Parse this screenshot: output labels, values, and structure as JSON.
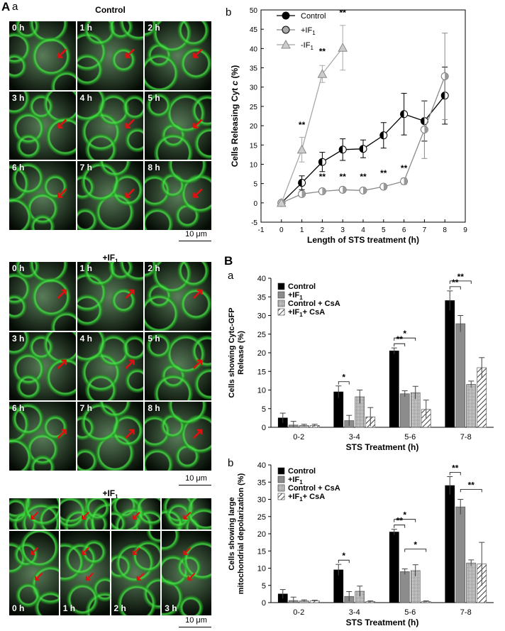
{
  "panel_labels": {
    "A": "A",
    "A_sub": "a",
    "B_chart": "b",
    "B": "B",
    "Ba": "a",
    "Bb": "b"
  },
  "micrographs": [
    {
      "title": "Control",
      "scale": "10 μm",
      "tiles": [
        "0 h",
        "1 h",
        "2 h",
        "3 h",
        "4 h",
        "5 h",
        "6 h",
        "7 h",
        "8 h"
      ]
    },
    {
      "title": "+IF1",
      "scale": "10 μm",
      "tiles": [
        "0 h",
        "1 h",
        "2 h",
        "3 h",
        "4 h",
        "5 h",
        "6 h",
        "7 h",
        "8 h"
      ]
    },
    {
      "title": "+IF1",
      "scale": "10 μm",
      "tiles": [
        "0 h",
        "1 h",
        "2 h",
        "3 h"
      ]
    }
  ],
  "chart_data": [
    {
      "type": "line",
      "id": "line-cytc",
      "xlabel": "Length of STS treatment (h)",
      "ylabel": "Cells Releasing Cyt c (%)",
      "xlim": [
        -1,
        9
      ],
      "ylim": [
        -5,
        50
      ],
      "xticks": [
        "-1",
        "0",
        "1",
        "2",
        "3",
        "4",
        "5",
        "6",
        "7",
        "8",
        "9"
      ],
      "yticks": [
        "-5",
        "0",
        "5",
        "10",
        "15",
        "20",
        "25",
        "30",
        "35",
        "40",
        "45",
        "50"
      ],
      "legend_position": "top-left",
      "series": [
        {
          "name": "Control",
          "color": "#000000",
          "x": [
            0,
            1,
            2,
            3,
            4,
            5,
            6,
            7,
            8
          ],
          "y": [
            0,
            5.2,
            10.6,
            13.8,
            14.0,
            17.5,
            23.0,
            21.2,
            27.8
          ],
          "err": [
            0.4,
            1.8,
            2.5,
            2.8,
            2.3,
            3.3,
            5.4,
            5.2,
            7.4
          ]
        },
        {
          "name": "+IF1",
          "color": "#8a8a8a",
          "x": [
            0,
            1,
            2,
            3,
            4,
            5,
            6,
            7,
            8
          ],
          "y": [
            0,
            2.3,
            3.0,
            3.4,
            3.2,
            4.2,
            5.6,
            19.0,
            32.8
          ],
          "err": [
            0.3,
            0.5,
            0.5,
            0.6,
            0.5,
            0.6,
            0.8,
            7.5,
            11.2
          ]
        },
        {
          "name": "-IF1",
          "color": "#a8a8a8",
          "x": [
            0,
            1,
            2,
            3
          ],
          "y": [
            0,
            13.8,
            33.4,
            40.2
          ],
          "err": [
            0.3,
            3.2,
            2.2,
            5.8
          ]
        }
      ],
      "annotations": [
        {
          "x": 1,
          "y": 19.5,
          "text": "**"
        },
        {
          "x": 2,
          "y": 38.5,
          "text": "**"
        },
        {
          "x": 3,
          "y": 48.5,
          "text": "**"
        },
        {
          "x": 2,
          "y": 6.0,
          "text": "**"
        },
        {
          "x": 3,
          "y": 6.0,
          "text": "**"
        },
        {
          "x": 4,
          "y": 6.0,
          "text": "**"
        },
        {
          "x": 5,
          "y": 7.0,
          "text": "**"
        },
        {
          "x": 6,
          "y": 8.2,
          "text": "**"
        }
      ]
    },
    {
      "type": "bar",
      "id": "bar-cytc-gfp",
      "xlabel": "STS Treatment (h)",
      "ylabel": "Cells showing Cytc-GFP Release (%)",
      "categories": [
        "0-2",
        "3-4",
        "5-6",
        "7-8"
      ],
      "ylim": [
        0,
        40
      ],
      "yticks": [
        "0",
        "5",
        "10",
        "15",
        "20",
        "25",
        "30",
        "35",
        "40"
      ],
      "legend_position": "top-left",
      "series": [
        {
          "name": "Control",
          "fill": "black",
          "values": [
            2.5,
            9.5,
            20.5,
            34.0
          ],
          "err": [
            1.3,
            1.6,
            0.8,
            2.6
          ]
        },
        {
          "name": "+IF1",
          "fill": "gray",
          "values": [
            0.6,
            1.8,
            9.0,
            27.8
          ],
          "err": [
            1.0,
            1.4,
            0.8,
            2.2
          ]
        },
        {
          "name": "Control + CsA",
          "fill": "grid",
          "values": [
            0.5,
            8.2,
            9.3,
            11.5
          ],
          "err": [
            0.3,
            1.8,
            1.7,
            0.9
          ]
        },
        {
          "name": "+IF1+ CsA",
          "fill": "hatch",
          "values": [
            0.5,
            2.8,
            4.8,
            16.0
          ],
          "err": [
            0.3,
            2.5,
            2.5,
            2.7
          ]
        }
      ],
      "brackets": [
        {
          "group": 1,
          "from": 0,
          "to": 1,
          "text": "*"
        },
        {
          "group": 2,
          "from": 0,
          "to": 1,
          "text": "**"
        },
        {
          "group": 2,
          "from": 0,
          "to": 2,
          "text": "*"
        },
        {
          "group": 3,
          "from": 0,
          "to": 1,
          "text": "**"
        },
        {
          "group": 3,
          "from": 0,
          "to": 2,
          "text": "**"
        }
      ]
    },
    {
      "type": "bar",
      "id": "bar-depol",
      "xlabel": "STS Treatment (h)",
      "ylabel": "Cells showing large mitochondrial depolarization (%)",
      "categories": [
        "0-2",
        "3-4",
        "5-6",
        "7-8"
      ],
      "ylim": [
        0,
        40
      ],
      "yticks": [
        "0",
        "5",
        "10",
        "15",
        "20",
        "25",
        "30",
        "35",
        "40"
      ],
      "legend_position": "top-left",
      "series": [
        {
          "name": "Control",
          "fill": "black",
          "values": [
            2.5,
            9.5,
            20.5,
            34.0
          ],
          "err": [
            1.3,
            1.6,
            0.8,
            2.6
          ]
        },
        {
          "name": "+IF1",
          "fill": "gray",
          "values": [
            0.6,
            1.8,
            9.0,
            27.8
          ],
          "err": [
            1.0,
            1.4,
            0.8,
            2.2
          ]
        },
        {
          "name": "Control + CsA",
          "fill": "grid",
          "values": [
            0.5,
            3.3,
            9.3,
            11.5
          ],
          "err": [
            0.3,
            1.5,
            1.7,
            0.9
          ]
        },
        {
          "name": "+IF1+ CsA",
          "fill": "hatch",
          "values": [
            0.5,
            0.3,
            0.3,
            11.2
          ],
          "err": [
            0.2,
            0.2,
            0.2,
            6.3
          ]
        }
      ],
      "brackets": [
        {
          "group": 1,
          "from": 0,
          "to": 1,
          "text": "*"
        },
        {
          "group": 2,
          "from": 0,
          "to": 1,
          "text": "**"
        },
        {
          "group": 2,
          "from": 0,
          "to": 2,
          "text": "*"
        },
        {
          "group": 2,
          "from": 1,
          "to": 3,
          "text": "*"
        },
        {
          "group": 3,
          "from": 0,
          "to": 1,
          "text": "**"
        },
        {
          "group": 3,
          "from": 1,
          "to": 3,
          "text": "**"
        }
      ]
    }
  ]
}
